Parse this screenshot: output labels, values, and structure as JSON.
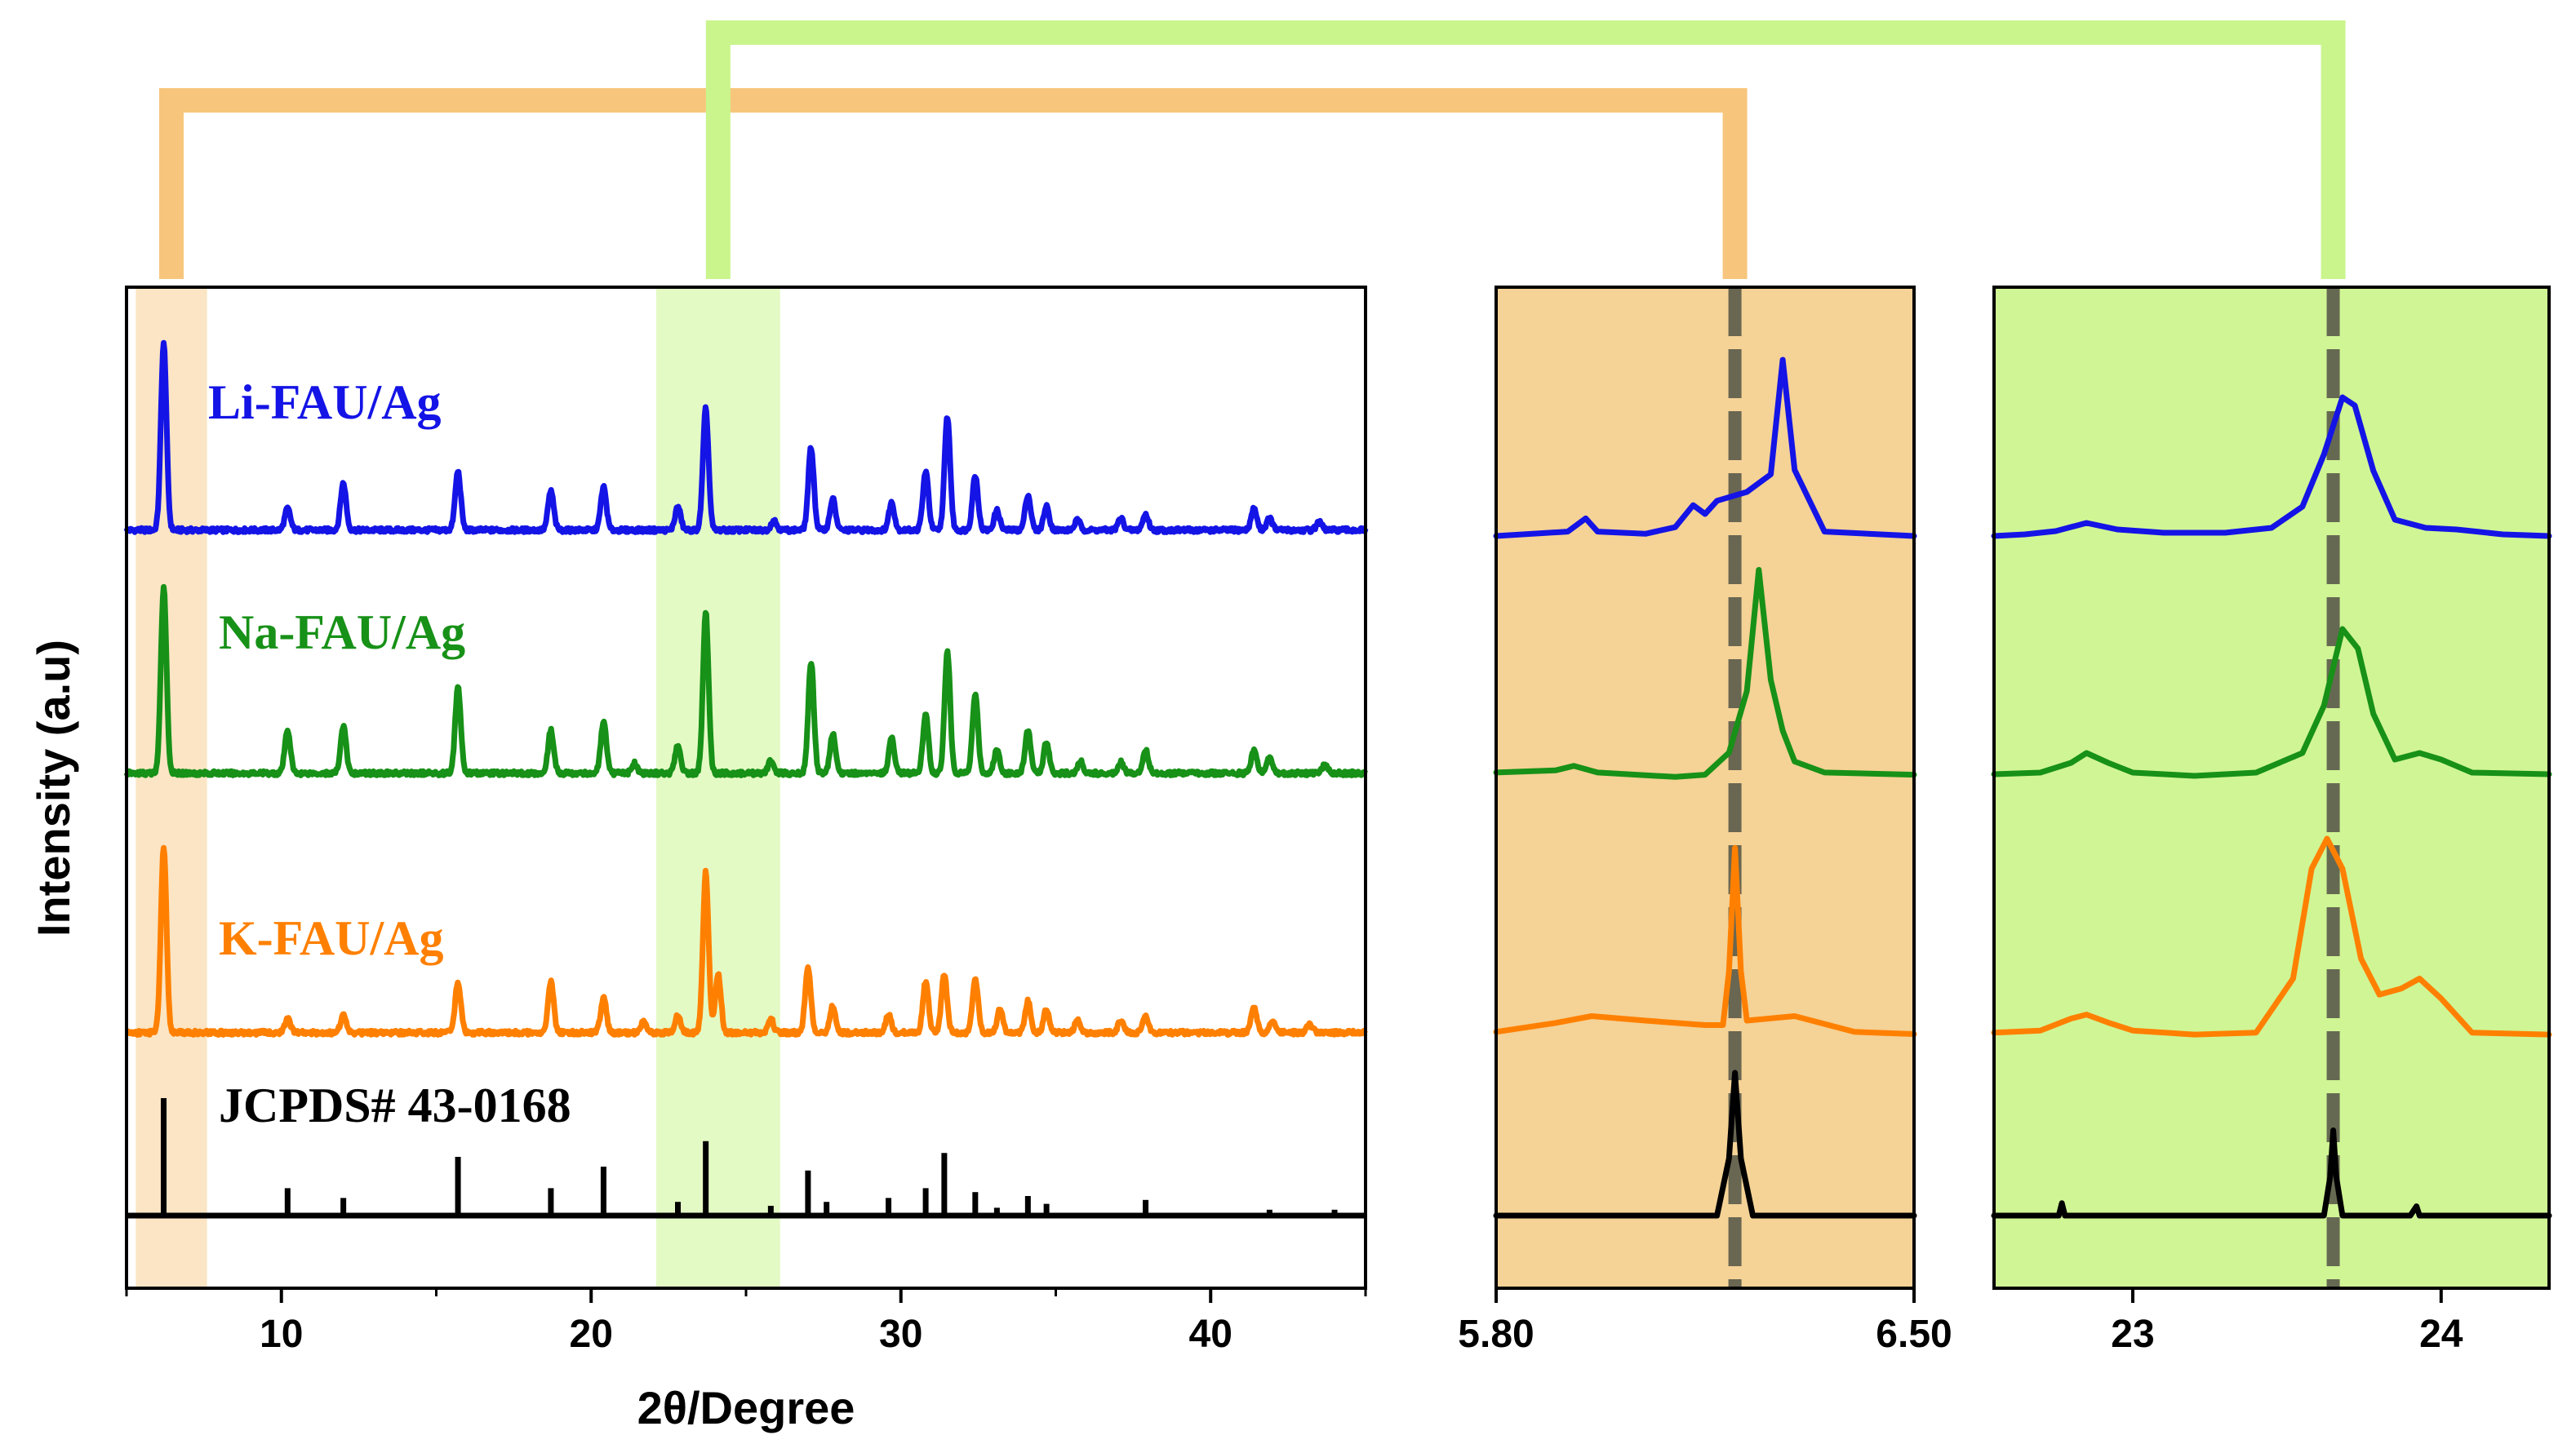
{
  "colors": {
    "li": "#1414e6",
    "na": "#179117",
    "k": "#ff8000",
    "ref": "#000000",
    "orange_band": "#f7c67c",
    "green_band": "#c9f58c",
    "orange_zoom_bg": "#f5d296",
    "green_zoom_bg": "#d0f595",
    "dashed_line": "#5a5a4a"
  },
  "chart_data": [
    {
      "type": "line",
      "title": "",
      "xlabel": "2θ/Degree",
      "ylabel": "Intensity (a.u)",
      "xlim": [
        5,
        45
      ],
      "xticks": [
        "10",
        "20",
        "30",
        "40"
      ],
      "highlight_ranges": [
        [
          5.3,
          7.6
        ],
        [
          22.1,
          26.1
        ]
      ],
      "series": [
        {
          "name": "Li-FAU/Ag",
          "key": "li",
          "baseline": 3,
          "peaks": [
            [
              6.2,
              95
            ],
            [
              10.2,
              11
            ],
            [
              12.0,
              24
            ],
            [
              15.7,
              30
            ],
            [
              18.7,
              20
            ],
            [
              20.4,
              22
            ],
            [
              22.8,
              12
            ],
            [
              23.7,
              62
            ],
            [
              25.9,
              5
            ],
            [
              27.1,
              42
            ],
            [
              27.8,
              16
            ],
            [
              29.7,
              14
            ],
            [
              30.8,
              30
            ],
            [
              31.5,
              58
            ],
            [
              32.4,
              28
            ],
            [
              33.1,
              10
            ],
            [
              34.1,
              18
            ],
            [
              34.7,
              12
            ],
            [
              35.7,
              5
            ],
            [
              37.1,
              6
            ],
            [
              37.9,
              8
            ],
            [
              41.4,
              11
            ],
            [
              41.9,
              6
            ],
            [
              43.5,
              4
            ]
          ]
        },
        {
          "name": "Na-FAU/Ag",
          "key": "na",
          "baseline": 3,
          "peaks": [
            [
              6.2,
              95
            ],
            [
              10.2,
              22
            ],
            [
              12.0,
              24
            ],
            [
              15.7,
              44
            ],
            [
              18.7,
              22
            ],
            [
              20.4,
              26
            ],
            [
              21.4,
              5
            ],
            [
              22.8,
              14
            ],
            [
              23.7,
              82
            ],
            [
              25.8,
              6
            ],
            [
              27.1,
              57
            ],
            [
              27.8,
              20
            ],
            [
              29.7,
              18
            ],
            [
              30.8,
              30
            ],
            [
              31.5,
              62
            ],
            [
              32.4,
              40
            ],
            [
              33.1,
              12
            ],
            [
              34.1,
              22
            ],
            [
              34.7,
              16
            ],
            [
              35.8,
              6
            ],
            [
              37.1,
              6
            ],
            [
              37.9,
              12
            ],
            [
              41.4,
              12
            ],
            [
              41.9,
              8
            ],
            [
              43.7,
              5
            ]
          ]
        },
        {
          "name": "K-FAU/Ag",
          "key": "k",
          "baseline": 3,
          "peaks": [
            [
              6.2,
              95
            ],
            [
              10.2,
              7
            ],
            [
              12.0,
              9
            ],
            [
              15.7,
              26
            ],
            [
              18.7,
              26
            ],
            [
              20.4,
              18
            ],
            [
              21.7,
              6
            ],
            [
              22.8,
              9
            ],
            [
              23.7,
              82
            ],
            [
              24.1,
              30
            ],
            [
              25.8,
              7
            ],
            [
              27.0,
              34
            ],
            [
              27.8,
              14
            ],
            [
              29.6,
              9
            ],
            [
              30.8,
              26
            ],
            [
              31.4,
              30
            ],
            [
              32.4,
              28
            ],
            [
              33.2,
              12
            ],
            [
              34.1,
              16
            ],
            [
              34.7,
              12
            ],
            [
              35.7,
              6
            ],
            [
              37.1,
              6
            ],
            [
              37.9,
              8
            ],
            [
              41.4,
              13
            ],
            [
              42.0,
              6
            ],
            [
              43.2,
              4
            ]
          ]
        },
        {
          "name": "JCPDS# 43-0168",
          "key": "ref",
          "baseline": 0,
          "stick": true,
          "peaks": [
            [
              6.2,
              60
            ],
            [
              10.2,
              14
            ],
            [
              12.0,
              9
            ],
            [
              15.7,
              30
            ],
            [
              18.7,
              14
            ],
            [
              20.4,
              25
            ],
            [
              22.8,
              7
            ],
            [
              23.7,
              38
            ],
            [
              25.8,
              5
            ],
            [
              27.0,
              23
            ],
            [
              27.6,
              7
            ],
            [
              29.6,
              9
            ],
            [
              30.8,
              14
            ],
            [
              31.4,
              32
            ],
            [
              32.4,
              12
            ],
            [
              33.1,
              4
            ],
            [
              34.1,
              10
            ],
            [
              34.7,
              6
            ],
            [
              37.9,
              8
            ],
            [
              41.9,
              3
            ],
            [
              44.0,
              3
            ]
          ]
        }
      ]
    },
    {
      "type": "line",
      "title": "",
      "xlim": [
        5.8,
        6.5
      ],
      "xticks": [
        "5.80",
        "6.50"
      ],
      "dashed_line_x": 6.2,
      "series": [
        {
          "key": "li",
          "values": [
            [
              5.8,
              0
            ],
            [
              5.92,
              2
            ],
            [
              5.95,
              8
            ],
            [
              5.97,
              2
            ],
            [
              6.05,
              1
            ],
            [
              6.1,
              4
            ],
            [
              6.13,
              14
            ],
            [
              6.15,
              10
            ],
            [
              6.17,
              16
            ],
            [
              6.22,
              20
            ],
            [
              6.26,
              28
            ],
            [
              6.28,
              80
            ],
            [
              6.3,
              30
            ],
            [
              6.35,
              2
            ],
            [
              6.5,
              0
            ]
          ]
        },
        {
          "key": "na",
          "values": [
            [
              5.8,
              3
            ],
            [
              5.9,
              4
            ],
            [
              5.93,
              6
            ],
            [
              5.97,
              3
            ],
            [
              6.1,
              1
            ],
            [
              6.15,
              2
            ],
            [
              6.19,
              12
            ],
            [
              6.22,
              40
            ],
            [
              6.24,
              95
            ],
            [
              6.26,
              45
            ],
            [
              6.28,
              22
            ],
            [
              6.3,
              8
            ],
            [
              6.35,
              3
            ],
            [
              6.5,
              2
            ]
          ]
        },
        {
          "key": "k",
          "values": [
            [
              5.8,
              3
            ],
            [
              5.9,
              7
            ],
            [
              5.96,
              10
            ],
            [
              6.05,
              8
            ],
            [
              6.15,
              6
            ],
            [
              6.18,
              6
            ],
            [
              6.19,
              30
            ],
            [
              6.2,
              85
            ],
            [
              6.21,
              30
            ],
            [
              6.22,
              8
            ],
            [
              6.3,
              10
            ],
            [
              6.4,
              3
            ],
            [
              6.5,
              2
            ]
          ]
        },
        {
          "key": "ref",
          "values": [
            [
              5.8,
              0
            ],
            [
              6.17,
              0
            ],
            [
              6.19,
              40
            ],
            [
              6.2,
              100
            ],
            [
              6.21,
              40
            ],
            [
              6.23,
              0
            ],
            [
              6.5,
              0
            ]
          ]
        }
      ]
    },
    {
      "type": "line",
      "title": "",
      "xlim": [
        22.55,
        24.35
      ],
      "xticks": [
        "23",
        "24"
      ],
      "dashed_line_x": 23.65,
      "series": [
        {
          "key": "li",
          "values": [
            [
              22.55,
              0
            ],
            [
              22.65,
              1
            ],
            [
              22.75,
              3
            ],
            [
              22.85,
              8
            ],
            [
              22.95,
              4
            ],
            [
              23.1,
              2
            ],
            [
              23.3,
              2
            ],
            [
              23.45,
              5
            ],
            [
              23.55,
              18
            ],
            [
              23.62,
              50
            ],
            [
              23.68,
              85
            ],
            [
              23.72,
              80
            ],
            [
              23.78,
              40
            ],
            [
              23.85,
              10
            ],
            [
              23.95,
              5
            ],
            [
              24.05,
              4
            ],
            [
              24.2,
              1
            ],
            [
              24.35,
              0
            ]
          ]
        },
        {
          "key": "na",
          "values": [
            [
              22.55,
              3
            ],
            [
              22.7,
              4
            ],
            [
              22.8,
              10
            ],
            [
              22.85,
              16
            ],
            [
              22.92,
              10
            ],
            [
              23.0,
              4
            ],
            [
              23.2,
              2
            ],
            [
              23.4,
              4
            ],
            [
              23.55,
              16
            ],
            [
              23.62,
              45
            ],
            [
              23.68,
              92
            ],
            [
              23.73,
              80
            ],
            [
              23.78,
              40
            ],
            [
              23.85,
              12
            ],
            [
              23.93,
              16
            ],
            [
              24.0,
              12
            ],
            [
              24.1,
              4
            ],
            [
              24.35,
              3
            ]
          ]
        },
        {
          "key": "k",
          "values": [
            [
              22.55,
              3
            ],
            [
              22.7,
              4
            ],
            [
              22.8,
              10
            ],
            [
              22.85,
              12
            ],
            [
              22.92,
              8
            ],
            [
              23.0,
              4
            ],
            [
              23.2,
              2
            ],
            [
              23.4,
              3
            ],
            [
              23.52,
              30
            ],
            [
              23.58,
              85
            ],
            [
              23.63,
              100
            ],
            [
              23.68,
              85
            ],
            [
              23.74,
              40
            ],
            [
              23.8,
              22
            ],
            [
              23.87,
              25
            ],
            [
              23.93,
              30
            ],
            [
              24.0,
              20
            ],
            [
              24.1,
              3
            ],
            [
              24.35,
              2
            ]
          ]
        },
        {
          "key": "ref",
          "values": [
            [
              22.55,
              0
            ],
            [
              22.76,
              0
            ],
            [
              22.77,
              8
            ],
            [
              22.78,
              0
            ],
            [
              23.62,
              0
            ],
            [
              23.64,
              25
            ],
            [
              23.65,
              55
            ],
            [
              23.66,
              25
            ],
            [
              23.68,
              0
            ],
            [
              23.9,
              0
            ],
            [
              23.92,
              6
            ],
            [
              23.93,
              0
            ],
            [
              24.35,
              0
            ]
          ]
        }
      ]
    }
  ],
  "labels": {
    "li": "Li-FAU/Ag",
    "na": "Na-FAU/Ag",
    "k": "K-FAU/Ag",
    "ref": "JCPDS# 43-0168"
  }
}
